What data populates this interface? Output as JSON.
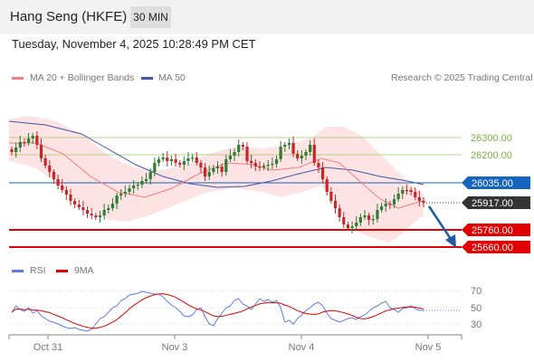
{
  "header": {
    "title": "Hang Seng (HKFE)",
    "timeframe": "30 MIN"
  },
  "datetime": "Tuesday, November 4, 2025 10:28:49 PM CET",
  "legend": {
    "ma20": "MA 20 + Bollinger Bands",
    "ma50": "MA 50",
    "credit": "Research © 2025 Trading Central",
    "rsi": "RSI",
    "ma9": "9MA"
  },
  "colors": {
    "ma20": "#f08080",
    "ma50": "#3b5ba5",
    "rsi": "#5b7fe0",
    "ma9": "#e00000",
    "band": "#fde3e3",
    "resistance": "#7cb342",
    "support": "#e00000",
    "pivot": "#1565c0",
    "arrow": "#1e5aa8"
  },
  "levels": [
    {
      "value": "26300.00",
      "type": "resistance"
    },
    {
      "value": "26200.00",
      "type": "resistance"
    },
    {
      "value": "26035.00",
      "type": "pivot"
    },
    {
      "value": "25917.00",
      "type": "last"
    },
    {
      "value": "25760.00",
      "type": "support"
    },
    {
      "value": "25660.00",
      "type": "support"
    }
  ],
  "rsi_levels": [
    "70",
    "50",
    "30"
  ],
  "x_labels": [
    "Oct 31",
    "Nov 3",
    "Nov 4",
    "Nov 5"
  ]
}
